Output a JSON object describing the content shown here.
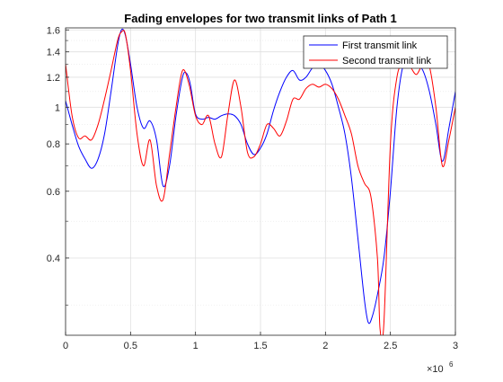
{
  "chart_data": {
    "type": "line",
    "title": "Fading envelopes for two transmit links of Path 1",
    "xlabel": "",
    "ylabel": "",
    "xlim": [
      0,
      3000000
    ],
    "ylim": [
      0.25,
      1.62
    ],
    "yscale": "log",
    "grid": "on (major and minor)",
    "legend_placement": "top-right",
    "x_exponent_label": "×10",
    "x_exponent_power": "6",
    "x_ticks": [
      {
        "value": 0,
        "label": "0"
      },
      {
        "value": 500000,
        "label": "0.5"
      },
      {
        "value": 1000000,
        "label": "1"
      },
      {
        "value": 1500000,
        "label": "1.5"
      },
      {
        "value": 2000000,
        "label": "2"
      },
      {
        "value": 2500000,
        "label": "2.5"
      },
      {
        "value": 3000000,
        "label": "3"
      }
    ],
    "y_ticks": [
      {
        "value": 0.4,
        "label": "0.4"
      },
      {
        "value": 0.6,
        "label": "0.6"
      },
      {
        "value": 0.8,
        "label": "0.8"
      },
      {
        "value": 1.0,
        "label": "1"
      },
      {
        "value": 1.2,
        "label": "1.2"
      },
      {
        "value": 1.4,
        "label": "1.4"
      },
      {
        "value": 1.6,
        "label": "1.6"
      }
    ],
    "y_minor_ticks": [
      0.3,
      0.5,
      0.7,
      0.9,
      1.1,
      1.3,
      1.5
    ],
    "series": [
      {
        "name": "First transmit link",
        "color": "#0000ff",
        "x": [
          0,
          50000,
          100000,
          150000,
          200000,
          250000,
          300000,
          350000,
          400000,
          430000,
          460000,
          500000,
          550000,
          600000,
          650000,
          700000,
          750000,
          800000,
          850000,
          900000,
          930000,
          960000,
          1000000,
          1050000,
          1100000,
          1150000,
          1200000,
          1250000,
          1300000,
          1350000,
          1400000,
          1450000,
          1500000,
          1550000,
          1600000,
          1650000,
          1700000,
          1750000,
          1800000,
          1850000,
          1900000,
          1950000,
          2000000,
          2050000,
          2100000,
          2150000,
          2200000,
          2250000,
          2300000,
          2330000,
          2360000,
          2400000,
          2450000,
          2500000,
          2550000,
          2600000,
          2650000,
          2700000,
          2750000,
          2800000,
          2850000,
          2900000,
          2950000,
          3000000
        ],
        "y": [
          1.04,
          0.9,
          0.79,
          0.73,
          0.69,
          0.73,
          0.85,
          1.1,
          1.45,
          1.6,
          1.55,
          1.3,
          1.0,
          0.88,
          0.92,
          0.82,
          0.62,
          0.7,
          0.95,
          1.2,
          1.23,
          1.15,
          0.96,
          0.93,
          0.94,
          0.93,
          0.95,
          0.96,
          0.95,
          0.9,
          0.8,
          0.75,
          0.78,
          0.85,
          0.98,
          1.1,
          1.2,
          1.25,
          1.18,
          1.2,
          1.27,
          1.3,
          1.25,
          1.15,
          1.0,
          0.85,
          0.65,
          0.45,
          0.31,
          0.27,
          0.28,
          0.32,
          0.4,
          0.6,
          1.0,
          1.3,
          1.36,
          1.3,
          1.25,
          1.1,
          0.9,
          0.72,
          0.88,
          1.1
        ]
      },
      {
        "name": "Second transmit link",
        "color": "#ff0000",
        "x": [
          0,
          50000,
          100000,
          150000,
          200000,
          250000,
          300000,
          350000,
          400000,
          430000,
          460000,
          500000,
          550000,
          600000,
          650000,
          700000,
          750000,
          800000,
          850000,
          900000,
          950000,
          1000000,
          1050000,
          1100000,
          1150000,
          1200000,
          1250000,
          1300000,
          1350000,
          1400000,
          1450000,
          1500000,
          1550000,
          1600000,
          1650000,
          1700000,
          1750000,
          1800000,
          1850000,
          1900000,
          1950000,
          2000000,
          2050000,
          2100000,
          2150000,
          2200000,
          2250000,
          2300000,
          2350000,
          2400000,
          2420000,
          2450000,
          2500000,
          2550000,
          2600000,
          2650000,
          2700000,
          2750000,
          2800000,
          2850000,
          2900000,
          2950000,
          3000000
        ],
        "y": [
          1.3,
          0.95,
          0.83,
          0.84,
          0.82,
          0.9,
          1.05,
          1.25,
          1.5,
          1.58,
          1.56,
          1.25,
          0.85,
          0.7,
          0.82,
          0.62,
          0.57,
          0.75,
          1.0,
          1.25,
          1.15,
          0.95,
          0.9,
          0.95,
          0.8,
          0.74,
          0.96,
          1.18,
          1.0,
          0.76,
          0.74,
          0.8,
          0.9,
          0.88,
          0.84,
          0.92,
          1.05,
          1.05,
          1.12,
          1.15,
          1.13,
          1.15,
          1.12,
          1.05,
          0.95,
          0.85,
          0.7,
          0.63,
          0.58,
          0.4,
          0.26,
          0.27,
          0.8,
          1.2,
          1.3,
          1.28,
          1.22,
          1.3,
          1.28,
          1.0,
          0.7,
          0.82,
          1.0
        ]
      }
    ]
  }
}
